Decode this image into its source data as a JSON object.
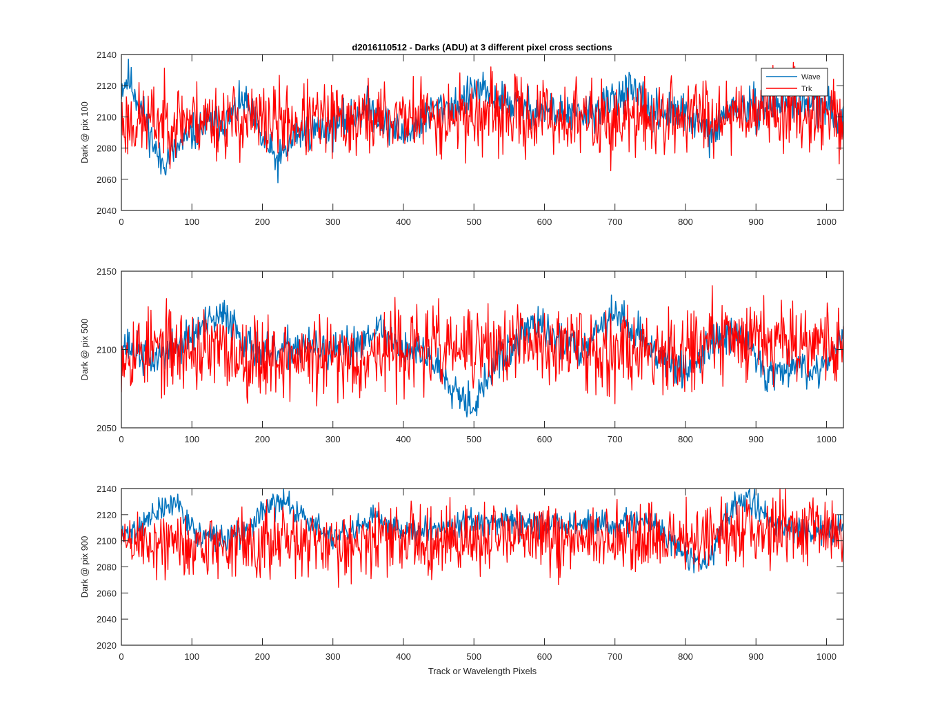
{
  "title": "d2016110512 - Darks (ADU) at 3 different pixel cross sections",
  "colors": {
    "wave": "#0072BD",
    "trk": "#FF0000",
    "axis": "#262626"
  },
  "legend": {
    "entries": [
      "Wave",
      "Trk"
    ],
    "placement": "top-right of first panel"
  },
  "chart_data": [
    {
      "type": "line",
      "title": "d2016110512 - Darks (ADU) at 3 different pixel cross sections",
      "xlabel": "",
      "ylabel": "Dark @ pix 100",
      "xlim": [
        0,
        1024
      ],
      "ylim": [
        2040,
        2140
      ],
      "xticks": [
        0,
        100,
        200,
        300,
        400,
        500,
        600,
        700,
        800,
        900,
        1000
      ],
      "yticks": [
        2040,
        2060,
        2080,
        2100,
        2120,
        2140
      ],
      "grid": false,
      "series": [
        {
          "name": "Wave",
          "color": "#0072BD",
          "noise": 6,
          "seed": 11,
          "x": [
            0,
            10,
            30,
            55,
            80,
            110,
            150,
            175,
            200,
            222,
            250,
            300,
            350,
            400,
            450,
            480,
            500,
            530,
            560,
            600,
            650,
            680,
            700,
            720,
            750,
            780,
            800,
            840,
            860,
            900,
            950,
            1000,
            1024
          ],
          "trend": [
            2119,
            2125,
            2104,
            2070,
            2080,
            2093,
            2098,
            2110,
            2085,
            2071,
            2090,
            2093,
            2106,
            2088,
            2106,
            2108,
            2117,
            2113,
            2107,
            2104,
            2101,
            2105,
            2113,
            2117,
            2104,
            2102,
            2102,
            2087,
            2106,
            2105,
            2111,
            2105,
            2098
          ]
        },
        {
          "name": "Trk",
          "color": "#FF0000",
          "noise": 12,
          "seed": 23,
          "x": [
            0,
            100,
            200,
            300,
            400,
            500,
            600,
            700,
            800,
            900,
            1000,
            1024
          ],
          "trend": [
            2096,
            2099,
            2097,
            2097,
            2100,
            2101,
            2100,
            2097,
            2101,
            2105,
            2103,
            2097
          ]
        }
      ]
    },
    {
      "type": "line",
      "xlabel": "",
      "ylabel": "Dark @ pix 500",
      "xlim": [
        0,
        1024
      ],
      "ylim": [
        2050,
        2150
      ],
      "xticks": [
        0,
        100,
        200,
        300,
        400,
        500,
        600,
        700,
        800,
        900,
        1000
      ],
      "yticks": [
        2050,
        2100,
        2150
      ],
      "grid": false,
      "series": [
        {
          "name": "Wave",
          "color": "#0072BD",
          "noise": 6,
          "seed": 37,
          "x": [
            0,
            40,
            80,
            110,
            150,
            180,
            210,
            250,
            300,
            340,
            360,
            400,
            430,
            460,
            480,
            500,
            530,
            560,
            580,
            620,
            650,
            680,
            700,
            720,
            760,
            800,
            840,
            880,
            900,
            920,
            950,
            980,
            1024
          ],
          "trend": [
            2105,
            2093,
            2102,
            2113,
            2122,
            2103,
            2095,
            2103,
            2097,
            2105,
            2115,
            2100,
            2098,
            2083,
            2073,
            2064,
            2091,
            2103,
            2118,
            2106,
            2101,
            2116,
            2123,
            2115,
            2098,
            2085,
            2108,
            2108,
            2096,
            2082,
            2093,
            2085,
            2105
          ]
        },
        {
          "name": "Trk",
          "color": "#FF0000",
          "noise": 13,
          "seed": 53,
          "x": [
            0,
            100,
            200,
            300,
            400,
            500,
            600,
            700,
            800,
            900,
            1000,
            1024
          ],
          "trend": [
            2100,
            2100,
            2096,
            2093,
            2101,
            2100,
            2104,
            2100,
            2101,
            2110,
            2106,
            2100
          ]
        }
      ]
    },
    {
      "type": "line",
      "xlabel": "Track or Wavelength Pixels",
      "ylabel": "Dark @ pix 900",
      "xlim": [
        0,
        1024
      ],
      "ylim": [
        2020,
        2140
      ],
      "xticks": [
        0,
        100,
        200,
        300,
        400,
        500,
        600,
        700,
        800,
        900,
        1000
      ],
      "yticks": [
        2020,
        2040,
        2060,
        2080,
        2100,
        2120,
        2140
      ],
      "grid": false,
      "series": [
        {
          "name": "Wave",
          "color": "#0072BD",
          "noise": 5,
          "seed": 71,
          "x": [
            0,
            30,
            55,
            80,
            105,
            150,
            180,
            200,
            235,
            270,
            300,
            330,
            360,
            400,
            430,
            460,
            490,
            520,
            560,
            600,
            640,
            680,
            720,
            760,
            800,
            830,
            850,
            870,
            890,
            920,
            960,
            1000,
            1024
          ],
          "trend": [
            2103,
            2113,
            2123,
            2130,
            2105,
            2101,
            2108,
            2124,
            2130,
            2113,
            2103,
            2106,
            2118,
            2108,
            2110,
            2112,
            2115,
            2114,
            2112,
            2112,
            2112,
            2112,
            2114,
            2112,
            2088,
            2080,
            2110,
            2128,
            2132,
            2115,
            2108,
            2107,
            2115
          ]
        },
        {
          "name": "Trk",
          "color": "#FF0000",
          "noise": 13,
          "seed": 89,
          "x": [
            0,
            100,
            200,
            300,
            400,
            500,
            600,
            700,
            800,
            900,
            1000,
            1024
          ],
          "trend": [
            2100,
            2096,
            2098,
            2098,
            2102,
            2100,
            2102,
            2100,
            2100,
            2110,
            2110,
            2108
          ]
        }
      ]
    }
  ]
}
